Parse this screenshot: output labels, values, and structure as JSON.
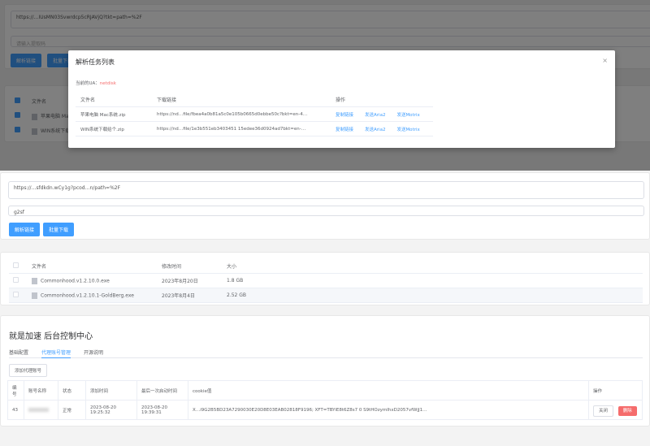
{
  "top": {
    "url": "https://…IUsMN03Svwrdcp5cRJAVjQ?tkt=path=%2F",
    "code_placeholder": "请输入提取码",
    "parse_btn": "解析链接",
    "batch_btn": "批量下载",
    "table_header": "文件名",
    "rows": [
      "苹果电脑 Mac系统.zip",
      "WIN系统下载给个.zip"
    ]
  },
  "modal": {
    "title": "解析任务列表",
    "close": "×",
    "ua_label": "当前的UA：",
    "ua_value": "netdisk",
    "columns": [
      "文件名",
      "下载链接",
      "操作"
    ],
    "rows": [
      {
        "name": "苹果电脑 Mac系统.zip",
        "link": "https://nd…file/fbea4a0b81a5c0e105b0665d0ebbe50c?bkt=en-4…"
      },
      {
        "name": "WIN系统下载给个.zip",
        "link": "https://nd…file/1e3b551eb3403451 15edee36d0924ad7bkt=en-…"
      }
    ],
    "actions": [
      "复制链接",
      "发送Aria2",
      "发送Motrix"
    ]
  },
  "mid": {
    "url": "https://…sfdkdn.wCy1g?pcod…n/path=%2F",
    "code": "g2sf",
    "parse_btn": "解析链接",
    "batch_btn": "批量下载",
    "columns": [
      "文件名",
      "修改时间",
      "大小"
    ],
    "rows": [
      {
        "name": "Commonhood.v1.2.10.0.exe",
        "time": "2023年8月20日",
        "size": "1.8 GB"
      },
      {
        "name": "Commonhood.v1.2.10.1-GoldBerg.exe",
        "time": "2023年8月4日",
        "size": "2.52 GB"
      }
    ]
  },
  "admin": {
    "title": "就是加速 后台控制中心",
    "tabs": [
      "基础配置",
      "代理账号管理",
      "开源说明"
    ],
    "active_tab": 1,
    "add_btn": "添加代理账号",
    "columns": [
      "编号",
      "账号名称",
      "状态",
      "添加时间",
      "最后一次启动时间",
      "cookie值",
      "操作"
    ],
    "row": {
      "id": "43",
      "status": "正常",
      "added": "2023-08-20 19:25:32",
      "last": "2023-08-20 19:39:31",
      "cookie": "X…i9G2B5BD23A7290030E20D8E03EAB02818F9196; XFT=TBYiE8t6Z8s7 0 S9tHOzymIhxD2057vfWjJ1…",
      "close": "关闭",
      "delete": "删除"
    }
  },
  "colors": {
    "primary": "#409eff",
    "danger": "#f56c6c",
    "ua": "#f56c6c"
  }
}
